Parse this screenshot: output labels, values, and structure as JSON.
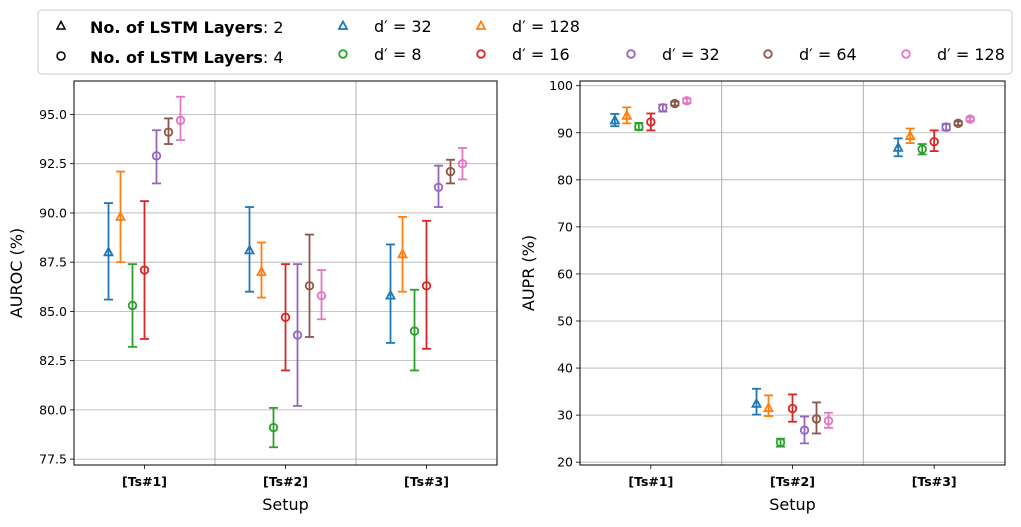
{
  "legend": {
    "layers_entries": [
      {
        "bold": "No.  of LSTM Layers",
        "rest": ": 2",
        "marker": "triangle"
      },
      {
        "bold": "No.  of LSTM Layers",
        "rest": ": 4",
        "marker": "circle"
      }
    ],
    "dim_entries": [
      {
        "label": "d′ = 32",
        "series": "l2_d32"
      },
      {
        "label": "d′ = 8",
        "series": "l4_d8"
      },
      {
        "label": "d′ = 128",
        "series": "l2_d128"
      },
      {
        "label": "d′ = 16",
        "series": "l4_d16"
      },
      {
        "label": "d′ = 32",
        "series": "l4_d32"
      },
      {
        "label": "d′ = 64",
        "series": "l4_d64"
      },
      {
        "label": "d′ = 128",
        "series": "l4_d128"
      }
    ]
  },
  "colors": {
    "l2_d32": "#1f77b4",
    "l4_d8": "#2ca02c",
    "l2_d128": "#ff7f0e",
    "l4_d16": "#d62728",
    "l4_d32": "#9467bd",
    "l4_d64": "#8c564b",
    "l4_d128": "#e377c2"
  },
  "chart_data": [
    {
      "type": "errorbar",
      "name": "auroc",
      "xlabel": "Setup",
      "ylabel": "AUROC (%)",
      "categories": [
        "[Ts#1]",
        "[Ts#2]",
        "[Ts#3]"
      ],
      "ylim": [
        77.2,
        96.7
      ],
      "yticks": [
        77.5,
        80.0,
        82.5,
        85.0,
        87.5,
        90.0,
        92.5,
        95.0
      ],
      "grid": true,
      "series": [
        {
          "key": "l2_d32",
          "layers": 2,
          "dim": 32,
          "marker": "triangle",
          "values": [
            88.0,
            88.1,
            85.8
          ],
          "lower": [
            85.6,
            86.0,
            83.4
          ],
          "upper": [
            90.5,
            90.3,
            88.4
          ]
        },
        {
          "key": "l2_d128",
          "layers": 2,
          "dim": 128,
          "marker": "triangle",
          "values": [
            89.8,
            87.0,
            87.9
          ],
          "lower": [
            87.5,
            85.7,
            86.0
          ],
          "upper": [
            92.1,
            88.5,
            89.8
          ]
        },
        {
          "key": "l4_d8",
          "layers": 4,
          "dim": 8,
          "marker": "circle",
          "values": [
            85.3,
            79.1,
            84.0
          ],
          "lower": [
            83.2,
            78.1,
            82.0
          ],
          "upper": [
            87.4,
            80.1,
            86.1
          ]
        },
        {
          "key": "l4_d16",
          "layers": 4,
          "dim": 16,
          "marker": "circle",
          "values": [
            87.1,
            84.7,
            86.3
          ],
          "lower": [
            83.6,
            82.0,
            83.1
          ],
          "upper": [
            90.6,
            87.4,
            89.6
          ]
        },
        {
          "key": "l4_d32",
          "layers": 4,
          "dim": 32,
          "marker": "circle",
          "values": [
            92.9,
            83.8,
            91.3
          ],
          "lower": [
            91.5,
            80.2,
            90.3
          ],
          "upper": [
            94.2,
            87.4,
            92.4
          ]
        },
        {
          "key": "l4_d64",
          "layers": 4,
          "dim": 64,
          "marker": "circle",
          "values": [
            94.1,
            86.3,
            92.1
          ],
          "lower": [
            93.5,
            83.7,
            91.5
          ],
          "upper": [
            94.8,
            88.9,
            92.7
          ]
        },
        {
          "key": "l4_d128",
          "layers": 4,
          "dim": 128,
          "marker": "circle",
          "values": [
            94.7,
            85.8,
            92.5
          ],
          "lower": [
            93.7,
            84.6,
            91.7
          ],
          "upper": [
            95.9,
            87.1,
            93.3
          ]
        }
      ]
    },
    {
      "type": "errorbar",
      "name": "aupr",
      "xlabel": "Setup",
      "ylabel": "AUPR (%)",
      "categories": [
        "[Ts#1]",
        "[Ts#2]",
        "[Ts#3]"
      ],
      "ylim": [
        19.4,
        101.0
      ],
      "yticks": [
        20,
        30,
        40,
        50,
        60,
        70,
        80,
        90,
        100
      ],
      "grid": true,
      "series": [
        {
          "key": "l2_d32",
          "layers": 2,
          "dim": 32,
          "marker": "triangle",
          "values": [
            92.6,
            32.4,
            86.8
          ],
          "lower": [
            91.4,
            30.1,
            85.0
          ],
          "upper": [
            94.0,
            35.6,
            88.8
          ]
        },
        {
          "key": "l2_d128",
          "layers": 2,
          "dim": 128,
          "marker": "triangle",
          "values": [
            93.6,
            31.5,
            89.3
          ],
          "lower": [
            92.0,
            29.8,
            87.8
          ],
          "upper": [
            95.4,
            34.2,
            90.9
          ]
        },
        {
          "key": "l4_d8",
          "layers": 4,
          "dim": 8,
          "marker": "circle",
          "values": [
            91.3,
            24.2,
            86.5
          ],
          "lower": [
            90.6,
            23.3,
            85.4
          ],
          "upper": [
            92.1,
            25.0,
            87.6
          ]
        },
        {
          "key": "l4_d16",
          "layers": 4,
          "dim": 16,
          "marker": "circle",
          "values": [
            92.3,
            31.4,
            88.1
          ],
          "lower": [
            90.5,
            28.6,
            86.1
          ],
          "upper": [
            94.1,
            34.4,
            90.5
          ]
        },
        {
          "key": "l4_d32",
          "layers": 4,
          "dim": 32,
          "marker": "circle",
          "values": [
            95.3,
            26.8,
            91.2
          ],
          "lower": [
            94.5,
            24.0,
            90.5
          ],
          "upper": [
            96.0,
            29.7,
            91.9
          ]
        },
        {
          "key": "l4_d64",
          "layers": 4,
          "dim": 64,
          "marker": "circle",
          "values": [
            96.2,
            29.2,
            92.0
          ],
          "lower": [
            95.8,
            26.1,
            91.6
          ],
          "upper": [
            96.6,
            32.7,
            92.4
          ]
        },
        {
          "key": "l4_d128",
          "layers": 4,
          "dim": 128,
          "marker": "circle",
          "values": [
            96.8,
            28.8,
            92.9
          ],
          "lower": [
            96.3,
            27.3,
            92.5
          ],
          "upper": [
            97.3,
            30.5,
            93.3
          ]
        }
      ]
    }
  ]
}
